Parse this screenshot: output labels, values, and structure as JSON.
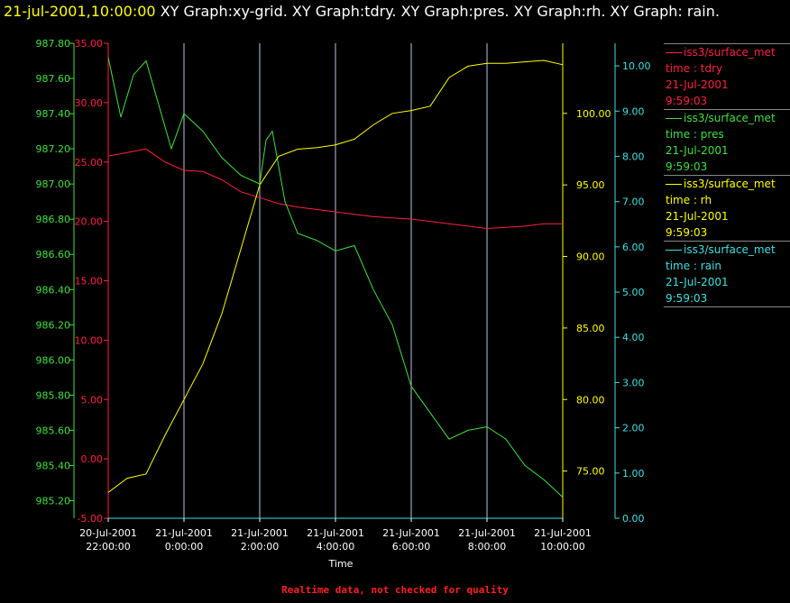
{
  "header": {
    "timestamp": "21-jul-2001,10:00:00",
    "graphs": "XY Graph:xy-grid.  XY Graph:tdry.  XY Graph:pres.  XY Graph:rh.  XY Graph: rain."
  },
  "footer": "Realtime data, not checked for quality",
  "colors": {
    "tdry": "#ff2040",
    "pres": "#40e040",
    "rh": "#ffff00",
    "rain": "#40e0e0",
    "grid": "#ffffff",
    "axis_text": "#ffffff",
    "background": "#000000"
  },
  "legend": [
    {
      "series": "tdry",
      "source": "iss3/surface_met",
      "field": "time : tdry",
      "date": "21-Jul-2001",
      "time": "9:59:03"
    },
    {
      "series": "pres",
      "source": "iss3/surface_met",
      "field": "time : pres",
      "date": "21-Jul-2001",
      "time": "9:59:03"
    },
    {
      "series": "rh",
      "source": "iss3/surface_met",
      "field": "time : rh",
      "date": "21-Jul-2001",
      "time": "9:59:03"
    },
    {
      "series": "rain",
      "source": "iss3/surface_met",
      "field": "time : rain",
      "date": "21-Jul-2001",
      "time": "9:59:03"
    }
  ],
  "chart_data": {
    "type": "line",
    "title": "",
    "xlabel": "Time",
    "xlim": [
      "20-Jul-2001 22:00:00",
      "21-Jul-2001 10:00:00"
    ],
    "x_ticks": [
      {
        "date": "20-Jul-2001",
        "time": "22:00:00"
      },
      {
        "date": "21-Jul-2001",
        "time": "0:00:00"
      },
      {
        "date": "21-Jul-2001",
        "time": "2:00:00"
      },
      {
        "date": "21-Jul-2001",
        "time": "4:00:00"
      },
      {
        "date": "21-Jul-2001",
        "time": "6:00:00"
      },
      {
        "date": "21-Jul-2001",
        "time": "8:00:00"
      },
      {
        "date": "21-Jul-2001",
        "time": "10:00:00"
      }
    ],
    "grid": "vertical",
    "axes": {
      "pres": {
        "side": "left-outer",
        "ylim": [
          985.1,
          987.8
        ],
        "ticks": [
          "985.20",
          "985.40",
          "985.60",
          "985.80",
          "986.00",
          "986.20",
          "986.40",
          "986.60",
          "986.80",
          "987.00",
          "987.20",
          "987.40",
          "987.60",
          "987.80"
        ]
      },
      "tdry": {
        "side": "left-inner",
        "ylim": [
          -5,
          35
        ],
        "ticks": [
          "-5.00",
          "0.00",
          "5.00",
          "10.00",
          "15.00",
          "20.00",
          "25.00",
          "30.00",
          "35.00"
        ]
      },
      "rh": {
        "side": "right-inner",
        "ylim": [
          71.7,
          104.9
        ],
        "ticks": [
          "75.00",
          "80.00",
          "85.00",
          "90.00",
          "95.00",
          "100.00"
        ]
      },
      "rain": {
        "side": "right-outer",
        "ylim": [
          0,
          10.5
        ],
        "ticks": [
          "0.00",
          "1.00",
          "2.00",
          "3.00",
          "4.00",
          "5.00",
          "6.00",
          "7.00",
          "8.00",
          "9.00",
          "10.00"
        ]
      }
    },
    "series": [
      {
        "name": "tdry",
        "axis": "tdry",
        "x": [
          "20-Jul-2001 22:00",
          "20-Jul-2001 22:30",
          "20-Jul-2001 23:00",
          "20-Jul-2001 23:30",
          "21-Jul-2001 0:00",
          "21-Jul-2001 0:30",
          "21-Jul-2001 1:00",
          "21-Jul-2001 1:30",
          "21-Jul-2001 2:00",
          "21-Jul-2001 2:30",
          "21-Jul-2001 3:00",
          "21-Jul-2001 3:30",
          "21-Jul-2001 4:00",
          "21-Jul-2001 4:30",
          "21-Jul-2001 5:00",
          "21-Jul-2001 5:30",
          "21-Jul-2001 6:00",
          "21-Jul-2001 6:30",
          "21-Jul-2001 7:00",
          "21-Jul-2001 7:30",
          "21-Jul-2001 8:00",
          "21-Jul-2001 8:30",
          "21-Jul-2001 9:00",
          "21-Jul-2001 9:30",
          "21-Jul-2001 10:00"
        ],
        "values": [
          25.5,
          25.8,
          26.1,
          25.0,
          24.3,
          24.2,
          23.5,
          22.5,
          22.0,
          21.5,
          21.2,
          21.0,
          20.8,
          20.6,
          20.4,
          20.3,
          20.2,
          20.0,
          19.8,
          19.6,
          19.4,
          19.5,
          19.6,
          19.8,
          19.8
        ]
      },
      {
        "name": "pres",
        "axis": "pres",
        "x": [
          "20-Jul-2001 22:00",
          "20-Jul-2001 22:20",
          "20-Jul-2001 22:40",
          "20-Jul-2001 23:00",
          "20-Jul-2001 23:20",
          "20-Jul-2001 23:40",
          "21-Jul-2001 0:00",
          "21-Jul-2001 0:30",
          "21-Jul-2001 1:00",
          "21-Jul-2001 1:30",
          "21-Jul-2001 2:00",
          "21-Jul-2001 2:10",
          "21-Jul-2001 2:20",
          "21-Jul-2001 2:40",
          "21-Jul-2001 3:00",
          "21-Jul-2001 3:30",
          "21-Jul-2001 4:00",
          "21-Jul-2001 4:30",
          "21-Jul-2001 5:00",
          "21-Jul-2001 5:30",
          "21-Jul-2001 6:00",
          "21-Jul-2001 6:30",
          "21-Jul-2001 7:00",
          "21-Jul-2001 7:30",
          "21-Jul-2001 8:00",
          "21-Jul-2001 8:30",
          "21-Jul-2001 9:00",
          "21-Jul-2001 9:30",
          "21-Jul-2001 10:00"
        ],
        "values": [
          987.72,
          987.38,
          987.62,
          987.7,
          987.45,
          987.2,
          987.4,
          987.3,
          987.15,
          987.05,
          987.0,
          987.25,
          987.3,
          986.9,
          986.72,
          986.68,
          986.62,
          986.65,
          986.4,
          986.2,
          985.85,
          985.7,
          985.55,
          985.6,
          985.62,
          985.55,
          985.4,
          985.32,
          985.22
        ]
      },
      {
        "name": "rh",
        "axis": "rh",
        "x": [
          "20-Jul-2001 22:00",
          "20-Jul-2001 22:30",
          "20-Jul-2001 23:00",
          "20-Jul-2001 23:30",
          "21-Jul-2001 0:00",
          "21-Jul-2001 0:30",
          "21-Jul-2001 1:00",
          "21-Jul-2001 1:30",
          "21-Jul-2001 2:00",
          "21-Jul-2001 2:30",
          "21-Jul-2001 3:00",
          "21-Jul-2001 3:30",
          "21-Jul-2001 4:00",
          "21-Jul-2001 4:30",
          "21-Jul-2001 5:00",
          "21-Jul-2001 5:30",
          "21-Jul-2001 6:00",
          "21-Jul-2001 6:30",
          "21-Jul-2001 7:00",
          "21-Jul-2001 7:30",
          "21-Jul-2001 8:00",
          "21-Jul-2001 8:30",
          "21-Jul-2001 9:00",
          "21-Jul-2001 9:30",
          "21-Jul-2001 10:00"
        ],
        "values": [
          73.5,
          74.5,
          74.8,
          77.5,
          80.0,
          82.5,
          86.0,
          90.5,
          95.0,
          97.0,
          97.5,
          97.6,
          97.8,
          98.2,
          99.2,
          100.0,
          100.2,
          100.5,
          102.5,
          103.3,
          103.5,
          103.5,
          103.6,
          103.7,
          103.4
        ]
      },
      {
        "name": "rain",
        "axis": "rain",
        "x": [
          "20-Jul-2001 22:00",
          "21-Jul-2001 10:00"
        ],
        "values": [
          0.0,
          0.0
        ]
      }
    ]
  }
}
